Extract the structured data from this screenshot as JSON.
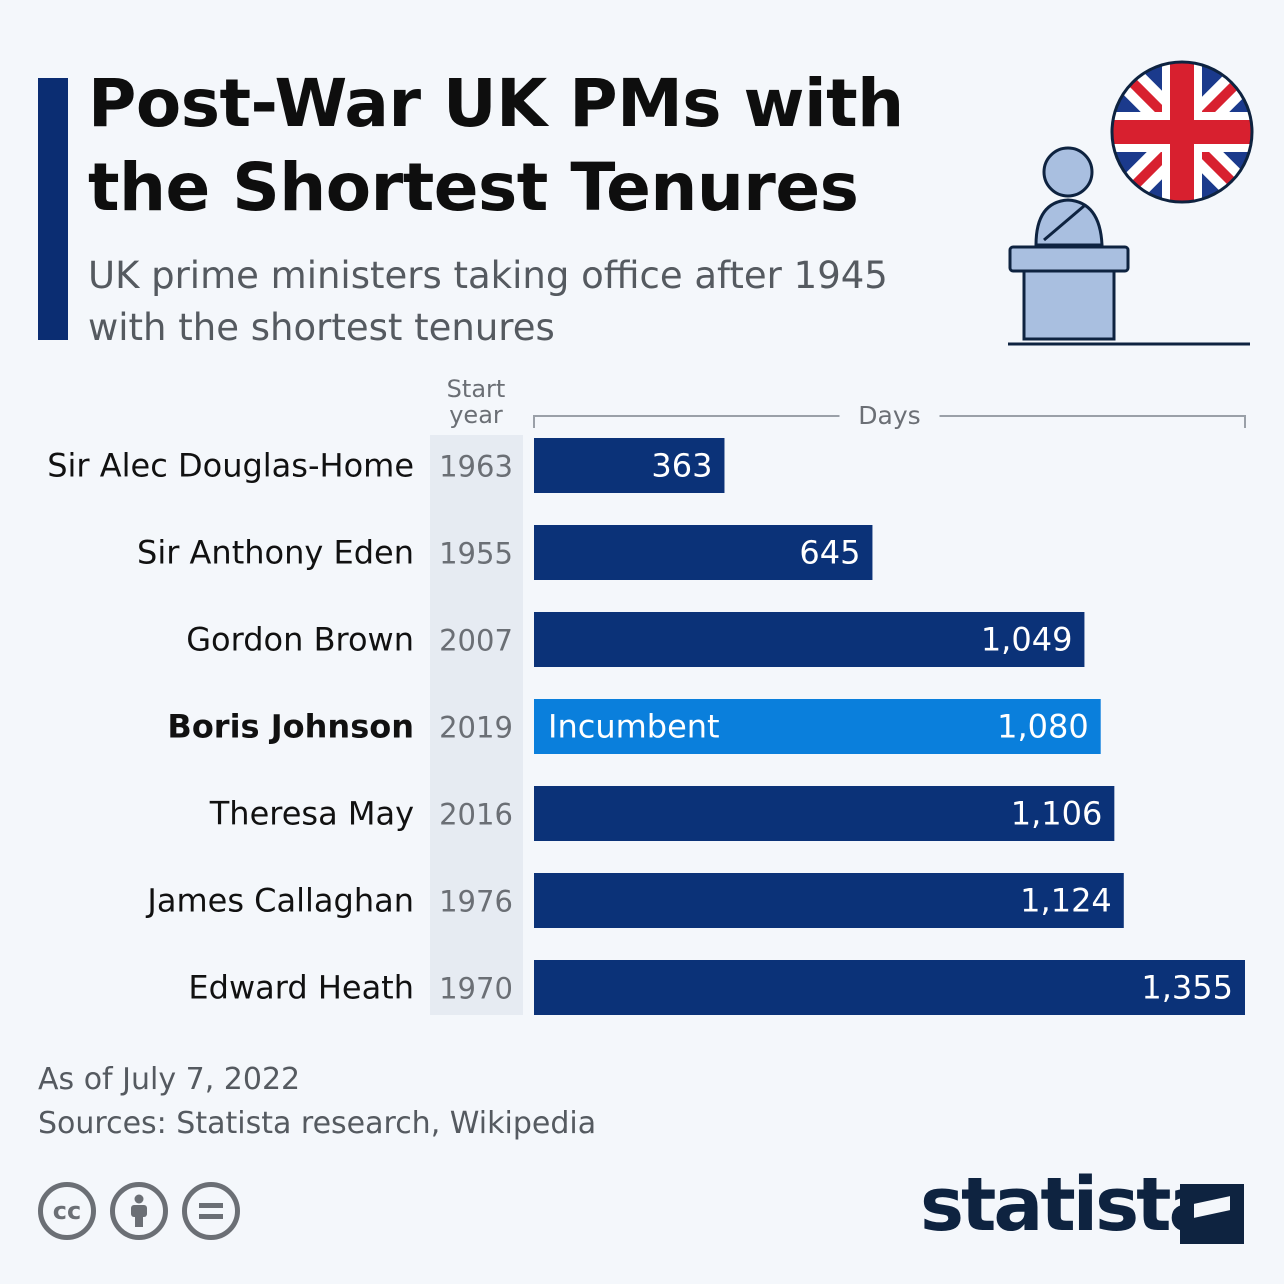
{
  "header": {
    "title_line1": "Post-War UK PMs with",
    "title_line2": "the Shortest Tenures",
    "subtitle_line1": "UK prime ministers taking office after 1945",
    "subtitle_line2": "with the shortest tenures"
  },
  "illustration": {
    "icon": "politician-podium-with-union-jack-icon"
  },
  "chart_data": {
    "type": "bar",
    "orientation": "horizontal",
    "column_header_line1": "Start",
    "column_header_line2": "year",
    "axis_label": "Days",
    "rows": [
      {
        "name": "Sir Alec Douglas-Home",
        "start_year": "1963",
        "days": 363,
        "label": "363",
        "highlight": false,
        "note": ""
      },
      {
        "name": "Sir Anthony Eden",
        "start_year": "1955",
        "days": 645,
        "label": "645",
        "highlight": false,
        "note": ""
      },
      {
        "name": "Gordon Brown",
        "start_year": "2007",
        "days": 1049,
        "label": "1,049",
        "highlight": false,
        "note": ""
      },
      {
        "name": "Boris Johnson",
        "start_year": "2019",
        "days": 1080,
        "label": "1,080",
        "highlight": true,
        "note": "Incumbent"
      },
      {
        "name": "Theresa May",
        "start_year": "2016",
        "days": 1106,
        "label": "1,106",
        "highlight": false,
        "note": ""
      },
      {
        "name": "James Callaghan",
        "start_year": "1976",
        "days": 1124,
        "label": "1,124",
        "highlight": false,
        "note": ""
      },
      {
        "name": "Edward Heath",
        "start_year": "1970",
        "days": 1355,
        "label": "1,355",
        "highlight": false,
        "note": ""
      }
    ],
    "xlim": [
      0,
      1355
    ],
    "colors": {
      "bar": "#0b3278",
      "highlight": "#0a7fdc",
      "year_column_bg": "#e6ebf2"
    }
  },
  "footer": {
    "date": "As of July 7, 2022",
    "sources": "Sources: Statista research, Wikipedia",
    "license_icons": [
      "cc-icon",
      "attribution-icon",
      "no-derivatives-icon"
    ],
    "brand": "statista"
  }
}
